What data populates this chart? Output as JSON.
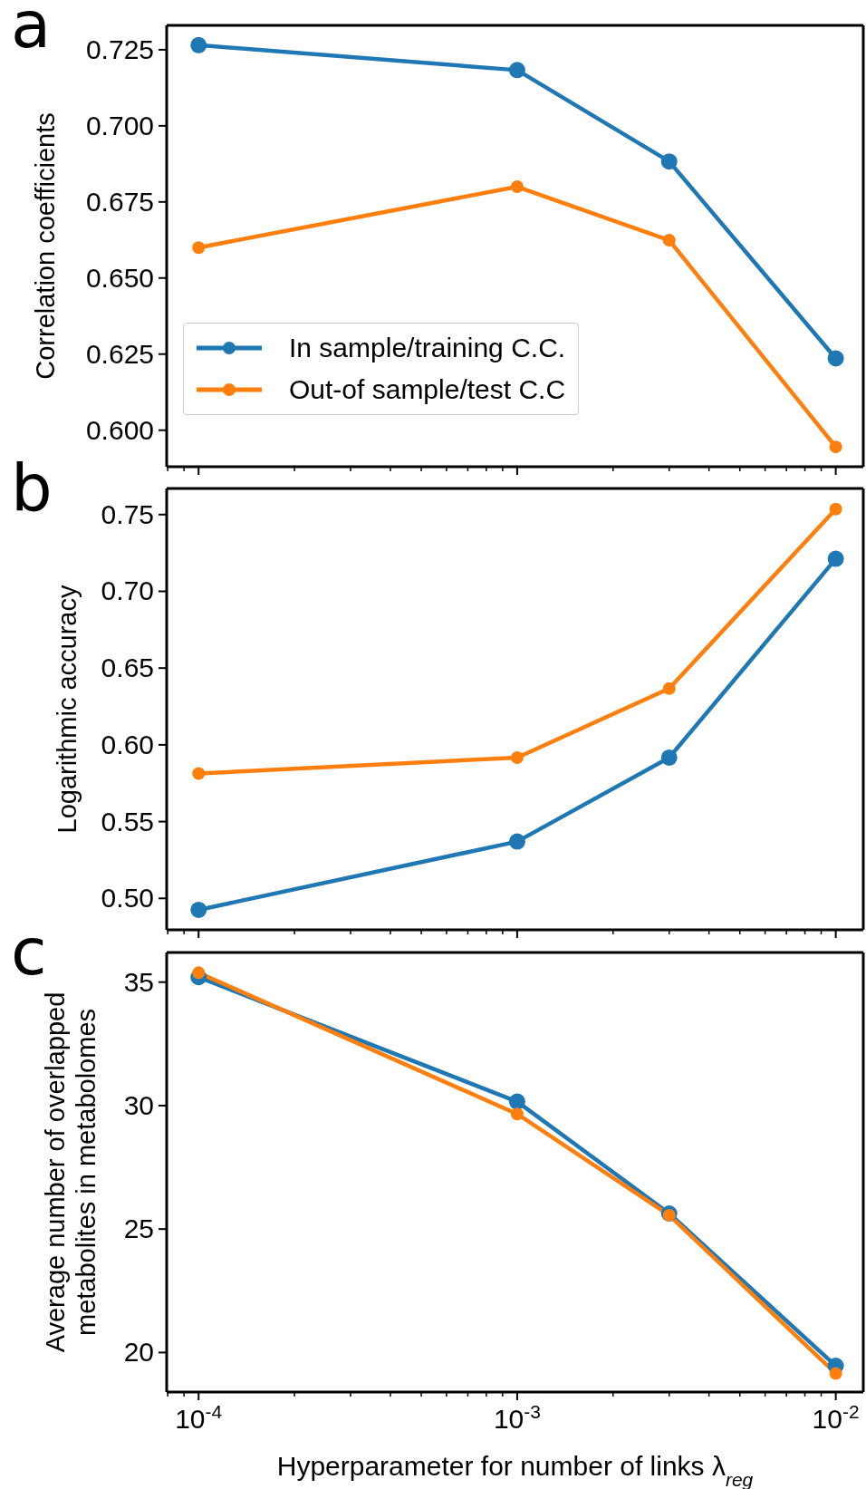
{
  "chart_data": [
    {
      "type": "line",
      "title": "a",
      "ylabel": "Correlation coefficients",
      "log": "x",
      "marker": "circle",
      "line_style": "solid",
      "legend": "bottom left",
      "tick_labels": "y",
      "x": [
        0.0001,
        0.001,
        0.003,
        0.01
      ],
      "xlim": [
        7.94e-05,
        0.0122
      ],
      "xticks": [
        {
          "value": 8e-05,
          "label": null
        },
        {
          "value": 9e-05,
          "label": null
        },
        {
          "value": 0.0001,
          "label": null
        },
        {
          "value": 0.0002,
          "label": null
        },
        {
          "value": 0.0003,
          "label": null
        },
        {
          "value": 0.0004,
          "label": null
        },
        {
          "value": 0.0005,
          "label": null
        },
        {
          "value": 0.0006,
          "label": null
        },
        {
          "value": 0.0007,
          "label": null
        },
        {
          "value": 0.0008,
          "label": null
        },
        {
          "value": 0.0009,
          "label": null
        },
        {
          "value": 0.001,
          "label": null
        },
        {
          "value": 0.002,
          "label": null
        },
        {
          "value": 0.003,
          "label": null
        },
        {
          "value": 0.004,
          "label": null
        },
        {
          "value": 0.005,
          "label": null
        },
        {
          "value": 0.006,
          "label": null
        },
        {
          "value": 0.007,
          "label": null
        },
        {
          "value": 0.008,
          "label": null
        },
        {
          "value": 0.009,
          "label": null
        },
        {
          "value": 0.01,
          "label": null
        }
      ],
      "ylim": [
        0.588,
        0.733
      ],
      "yticks": [
        {
          "value": 0.6,
          "label": "0.600"
        },
        0.625,
        {
          "value": 0.65,
          "label": "0.650"
        },
        0.675,
        {
          "value": 0.7,
          "label": "0.700"
        },
        0.725
      ],
      "series": [
        {
          "name": "In sample/training C.C.",
          "color": "#1f77b4",
          "values": [
            0.7265,
            0.7183,
            0.6883,
            0.6236
          ]
        },
        {
          "name": "Out-of sample/test C.C",
          "color": "#ff7f0e",
          "values": [
            0.66,
            0.68,
            0.6624,
            0.5945
          ]
        }
      ]
    },
    {
      "type": "line",
      "title": "b",
      "ylabel": "Logarithmic accuracy",
      "log": "x",
      "marker": "circle",
      "line_style": "solid",
      "tick_labels": "y",
      "x": [
        0.0001,
        0.001,
        0.003,
        0.01
      ],
      "xlim": [
        7.94e-05,
        0.0122
      ],
      "xticks": [
        {
          "value": 8e-05,
          "label": null
        },
        {
          "value": 9e-05,
          "label": null
        },
        {
          "value": 0.0001,
          "label": null
        },
        {
          "value": 0.0002,
          "label": null
        },
        {
          "value": 0.0003,
          "label": null
        },
        {
          "value": 0.0004,
          "label": null
        },
        {
          "value": 0.0005,
          "label": null
        },
        {
          "value": 0.0006,
          "label": null
        },
        {
          "value": 0.0007,
          "label": null
        },
        {
          "value": 0.0008,
          "label": null
        },
        {
          "value": 0.0009,
          "label": null
        },
        {
          "value": 0.001,
          "label": null
        },
        {
          "value": 0.002,
          "label": null
        },
        {
          "value": 0.003,
          "label": null
        },
        {
          "value": 0.004,
          "label": null
        },
        {
          "value": 0.005,
          "label": null
        },
        {
          "value": 0.006,
          "label": null
        },
        {
          "value": 0.007,
          "label": null
        },
        {
          "value": 0.008,
          "label": null
        },
        {
          "value": 0.009,
          "label": null
        },
        {
          "value": 0.01,
          "label": null
        }
      ],
      "ylim": [
        0.4795,
        0.767
      ],
      "yticks": [
        {
          "value": 0.5,
          "label": "0.50"
        },
        0.55,
        {
          "value": 0.6,
          "label": "0.60"
        },
        0.65,
        {
          "value": 0.7,
          "label": "0.70"
        },
        0.75
      ],
      "series": [
        {
          "color": "#1f77b4",
          "values": [
            0.4925,
            0.537,
            0.5917,
            0.7212
          ]
        },
        {
          "color": "#ff7f0e",
          "values": [
            0.5813,
            0.5917,
            0.6367,
            0.7536
          ]
        }
      ]
    },
    {
      "type": "line",
      "title": "c",
      "ylabel": "Average number of overlapped\nmetabolites in metabolomes",
      "xlabel": "Hyperparameter for number of links λ$_{reg}$",
      "log": "x",
      "marker": "circle",
      "line_style": "solid",
      "x": [
        0.0001,
        0.001,
        0.003,
        0.01
      ],
      "xlim": [
        7.94e-05,
        0.0122
      ],
      "xticks": [
        {
          "value": 8e-05,
          "label": null
        },
        {
          "value": 9e-05,
          "label": null
        },
        {
          "value": 0.0001,
          "label": "10$^{-4}$"
        },
        {
          "value": 0.0002,
          "label": null
        },
        {
          "value": 0.0003,
          "label": null
        },
        {
          "value": 0.0004,
          "label": null
        },
        {
          "value": 0.0005,
          "label": null
        },
        {
          "value": 0.0006,
          "label": null
        },
        {
          "value": 0.0007,
          "label": null
        },
        {
          "value": 0.0008,
          "label": null
        },
        {
          "value": 0.0009,
          "label": null
        },
        {
          "value": 0.001,
          "label": "10$^{-3}$"
        },
        {
          "value": 0.002,
          "label": null
        },
        {
          "value": 0.003,
          "label": null
        },
        {
          "value": 0.004,
          "label": null
        },
        {
          "value": 0.005,
          "label": null
        },
        {
          "value": 0.006,
          "label": null
        },
        {
          "value": 0.007,
          "label": null
        },
        {
          "value": 0.008,
          "label": null
        },
        {
          "value": 0.009,
          "label": null
        },
        {
          "value": 0.01,
          "label": "10$^{-2}$"
        }
      ],
      "ylim": [
        18.4,
        36.2
      ],
      "yticks": [
        20,
        25,
        30,
        35
      ],
      "series": [
        {
          "color": "#1f77b4",
          "values": [
            35.2,
            30.16,
            25.63,
            19.46
          ]
        },
        {
          "color": "#ff7f0e",
          "values": [
            35.38,
            29.66,
            25.56,
            19.15
          ]
        }
      ]
    }
  ]
}
